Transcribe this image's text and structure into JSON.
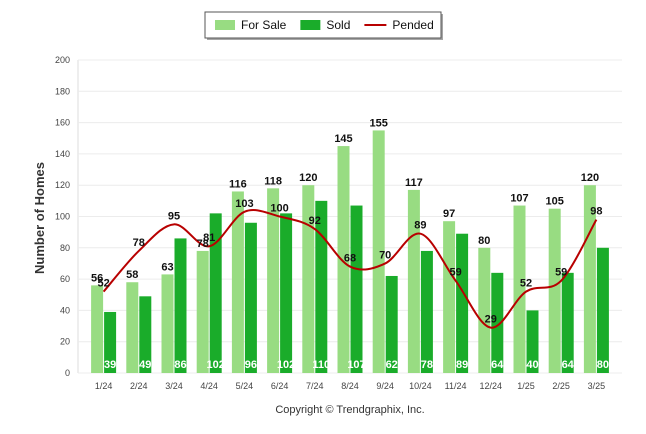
{
  "chart_data": {
    "type": "bar",
    "ylabel": "Number of Homes",
    "xlabel": "",
    "ylim": [
      0,
      200
    ],
    "y_ticks": [
      0,
      20,
      40,
      60,
      80,
      100,
      120,
      140,
      160,
      180,
      200
    ],
    "grid": true,
    "legend_position": "top-center",
    "categories": [
      "1/24",
      "2/24",
      "3/24",
      "4/24",
      "5/24",
      "6/24",
      "7/24",
      "8/24",
      "9/24",
      "10/24",
      "11/24",
      "12/24",
      "1/25",
      "2/25",
      "3/25"
    ],
    "series": [
      {
        "name": "For Sale",
        "kind": "bar",
        "color": "#98dc82",
        "values": [
          56,
          58,
          63,
          78,
          116,
          118,
          120,
          145,
          155,
          117,
          97,
          80,
          107,
          105,
          120
        ]
      },
      {
        "name": "Sold",
        "kind": "bar",
        "color": "#1aac2a",
        "values": [
          39,
          49,
          86,
          102,
          96,
          102,
          110,
          107,
          62,
          78,
          89,
          64,
          40,
          64,
          80
        ]
      },
      {
        "name": "Pended",
        "kind": "line",
        "color": "#b80000",
        "values": [
          52,
          78,
          95,
          81,
          103,
          100,
          92,
          68,
          70,
          89,
          59,
          29,
          52,
          59,
          98
        ]
      }
    ],
    "copyright": "Copyright © Trendgraphix, Inc."
  }
}
